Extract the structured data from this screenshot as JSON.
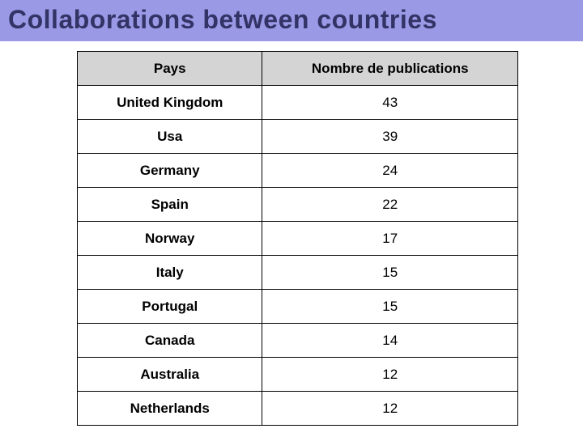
{
  "title": "Collaborations between countries",
  "title_color": "#333366",
  "title_bg": "#9999e6",
  "table": {
    "header_bg": "#d4d4d4",
    "border_color": "#000000",
    "columns": [
      "Pays",
      "Nombre de publications"
    ],
    "rows": [
      [
        "United Kingdom",
        "43"
      ],
      [
        "Usa",
        "39"
      ],
      [
        "Germany",
        "24"
      ],
      [
        "Spain",
        "22"
      ],
      [
        "Norway",
        "17"
      ],
      [
        "Italy",
        "15"
      ],
      [
        "Portugal",
        "15"
      ],
      [
        "Canada",
        "14"
      ],
      [
        "Australia",
        "12"
      ],
      [
        "Netherlands",
        "12"
      ]
    ]
  }
}
